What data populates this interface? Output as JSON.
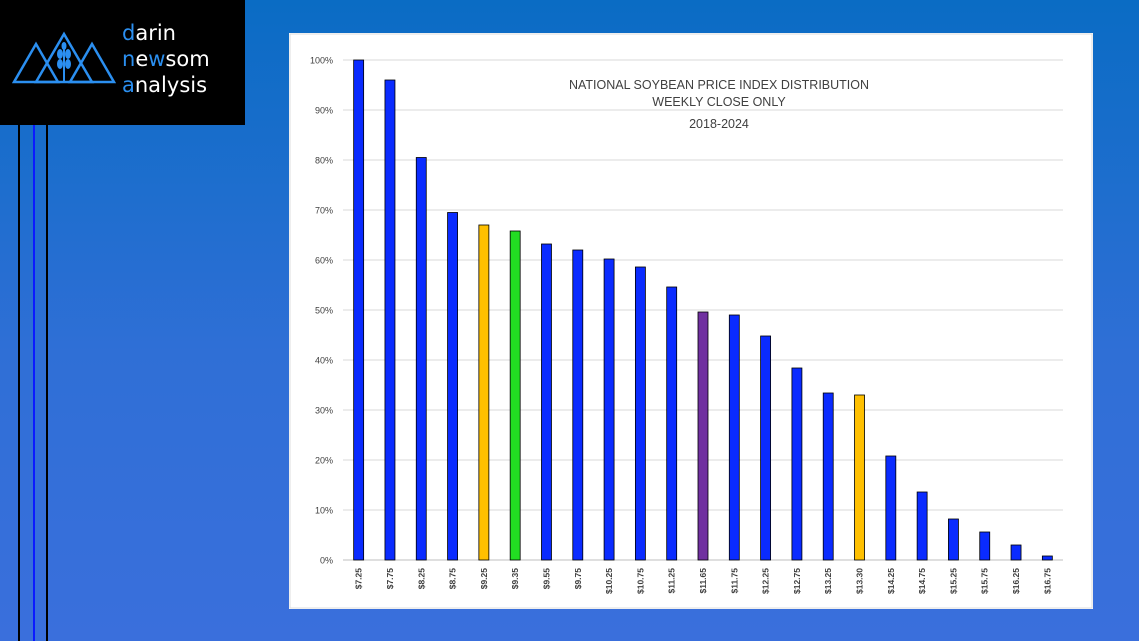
{
  "logo": {
    "line1_accent": "d",
    "line1_rest": "arin",
    "line2_accent1": "n",
    "line2_mid": "e",
    "line2_accent2": "w",
    "line2_rest": "som",
    "line3_accent": "a",
    "line3_rest": "nalysis",
    "accent_color": "#2b8ff0"
  },
  "chart_data": {
    "type": "bar",
    "title": [
      "NATIONAL SOYBEAN PRICE INDEX DISTRIBUTION",
      "WEEKLY CLOSE ONLY",
      "2018-2024"
    ],
    "xlabel": "",
    "ylabel": "",
    "ylim": [
      0,
      100
    ],
    "yticks": [
      "0%",
      "10%",
      "20%",
      "30%",
      "40%",
      "50%",
      "60%",
      "70%",
      "80%",
      "90%",
      "100%"
    ],
    "grid": true,
    "categories": [
      "$7.25",
      "$7.75",
      "$8.25",
      "$8.75",
      "$9.25",
      "$9.35",
      "$9.55",
      "$9.75",
      "$10.25",
      "$10.75",
      "$11.25",
      "$11.65",
      "$11.75",
      "$12.25",
      "$12.75",
      "$13.25",
      "$13.30",
      "$14.25",
      "$14.75",
      "$15.25",
      "$15.75",
      "$16.25",
      "$16.75"
    ],
    "values": [
      100,
      96,
      80.5,
      69.5,
      67,
      65.8,
      63.2,
      62,
      60.2,
      58.6,
      54.6,
      49.6,
      49,
      44.8,
      38.4,
      33.4,
      33,
      20.8,
      13.6,
      8.2,
      5.6,
      3,
      0.8
    ],
    "bar_colors": [
      "#0a2bff",
      "#0a2bff",
      "#0a2bff",
      "#0a2bff",
      "#ffc000",
      "#22dd22",
      "#0a2bff",
      "#0a2bff",
      "#0a2bff",
      "#0a2bff",
      "#0a2bff",
      "#7030a0",
      "#0a2bff",
      "#0a2bff",
      "#0a2bff",
      "#0a2bff",
      "#ffc000",
      "#0a2bff",
      "#0a2bff",
      "#0a2bff",
      "#0a2bff",
      "#0a2bff",
      "#0a2bff"
    ]
  }
}
